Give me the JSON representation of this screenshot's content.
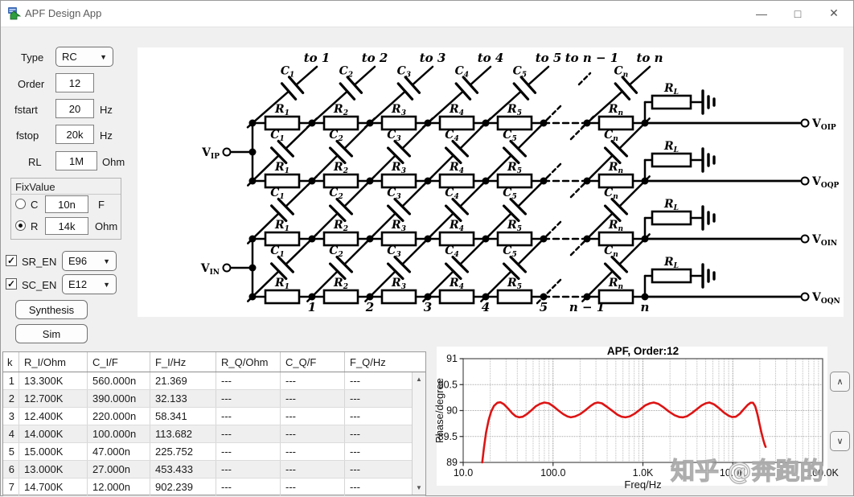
{
  "window": {
    "title": "APF Design App",
    "minimize": "—",
    "maximize": "□",
    "close": "✕"
  },
  "controls": {
    "type_label": "Type",
    "type_value": "RC",
    "order_label": "Order",
    "order_value": "12",
    "fstart_label": "fstart",
    "fstart_value": "20",
    "fstart_unit": "Hz",
    "fstop_label": "fstop",
    "fstop_value": "20k",
    "fstop_unit": "Hz",
    "rl_label": "RL",
    "rl_value": "1M",
    "rl_unit": "Ohm",
    "fixvalue": {
      "title": "FixValue",
      "c_label": "C",
      "c_value": "10n",
      "c_unit": "F",
      "r_label": "R",
      "r_value": "14k",
      "r_unit": "Ohm",
      "selected": "R"
    },
    "sr_en_label": "SR_EN",
    "sr_en_checked": "✓",
    "sr_en_value": "E96",
    "sc_en_label": "SC_EN",
    "sc_en_checked": "✓",
    "sc_en_value": "E12",
    "synthesis_label": "Synthesis",
    "sim_label": "Sim",
    "dropdown_arrow": "▼"
  },
  "schematic": {
    "top_labels": [
      "to 1",
      "to 2",
      "to 3",
      "to 4",
      "to 5",
      "to n − 1",
      "to n"
    ],
    "bottom_labels": [
      "1",
      "2",
      "3",
      "4",
      "5",
      "n − 1",
      "n"
    ],
    "element_subs": [
      "1",
      "2",
      "3",
      "4",
      "5",
      "n"
    ],
    "cap_base": "C",
    "res_base": "R",
    "load": {
      "b": "R",
      "s": "L"
    },
    "inputs": [
      {
        "b": "V",
        "s": "IP"
      },
      {
        "b": "V",
        "s": "IN"
      }
    ],
    "outputs": [
      {
        "b": "V",
        "s": "OIP"
      },
      {
        "b": "V",
        "s": "OQP"
      },
      {
        "b": "V",
        "s": "OIN"
      },
      {
        "b": "V",
        "s": "OQN"
      }
    ]
  },
  "table": {
    "headers": [
      "k",
      "R_I/Ohm",
      "C_I/F",
      "F_I/Hz",
      "R_Q/Ohm",
      "C_Q/F",
      "F_Q/Hz"
    ],
    "rows": [
      [
        "1",
        "13.300K",
        "560.000n",
        "21.369",
        "---",
        "---",
        "---"
      ],
      [
        "2",
        "12.700K",
        "390.000n",
        "32.133",
        "---",
        "---",
        "---"
      ],
      [
        "3",
        "12.400K",
        "220.000n",
        "58.341",
        "---",
        "---",
        "---"
      ],
      [
        "4",
        "14.000K",
        "100.000n",
        "113.682",
        "---",
        "---",
        "---"
      ],
      [
        "5",
        "15.000K",
        "47.000n",
        "225.752",
        "---",
        "---",
        "---"
      ],
      [
        "6",
        "13.000K",
        "27.000n",
        "453.433",
        "---",
        "---",
        "---"
      ],
      [
        "7",
        "14.700K",
        "12.000n",
        "902.239",
        "---",
        "---",
        "---"
      ]
    ],
    "scroll_up": "▲",
    "scroll_down": "▼"
  },
  "chart_buttons": {
    "up": "∧",
    "down": "∨"
  },
  "chart_data": {
    "type": "line",
    "title": "APF, Order:12",
    "xlabel": "Freq/Hz",
    "ylabel": "Phase/degree",
    "x_scale": "log",
    "xlim": [
      10,
      100000
    ],
    "ylim": [
      89,
      91
    ],
    "grid": true,
    "x_ticks": [
      {
        "v": 10,
        "label": "10.0"
      },
      {
        "v": 100,
        "label": "100.0"
      },
      {
        "v": 1000,
        "label": "1.0K"
      },
      {
        "v": 10000,
        "label": "10.0K"
      },
      {
        "v": 100000,
        "label": "100.0K"
      }
    ],
    "y_ticks": [
      {
        "v": 89,
        "label": "89"
      },
      {
        "v": 89.5,
        "label": "89.5"
      },
      {
        "v": 90,
        "label": "90"
      },
      {
        "v": 90.5,
        "label": "90.5"
      },
      {
        "v": 91,
        "label": "91"
      }
    ],
    "series": [
      {
        "name": "phase",
        "color": "#dd1414",
        "points": [
          [
            16.3,
            89.0
          ],
          [
            17,
            89.28
          ],
          [
            18,
            89.58
          ],
          [
            19.2,
            89.82
          ],
          [
            20.5,
            89.98
          ],
          [
            22,
            90.09
          ],
          [
            24,
            90.15
          ],
          [
            26,
            90.16
          ],
          [
            28.5,
            90.12
          ],
          [
            31.5,
            90.04
          ],
          [
            35,
            89.95
          ],
          [
            38.5,
            89.89
          ],
          [
            42,
            89.87
          ],
          [
            46,
            89.88
          ],
          [
            51,
            89.93
          ],
          [
            57,
            90.0
          ],
          [
            64,
            90.08
          ],
          [
            72,
            90.13
          ],
          [
            80,
            90.155
          ],
          [
            90,
            90.14
          ],
          [
            101,
            90.08
          ],
          [
            115,
            90.0
          ],
          [
            130,
            89.93
          ],
          [
            145,
            89.885
          ],
          [
            158,
            89.87
          ],
          [
            175,
            89.885
          ],
          [
            200,
            89.93
          ],
          [
            230,
            90.01
          ],
          [
            262,
            90.09
          ],
          [
            290,
            90.14
          ],
          [
            315,
            90.155
          ],
          [
            350,
            90.14
          ],
          [
            400,
            90.07
          ],
          [
            460,
            89.99
          ],
          [
            520,
            89.92
          ],
          [
            580,
            89.88
          ],
          [
            640,
            89.87
          ],
          [
            710,
            89.885
          ],
          [
            810,
            89.94
          ],
          [
            930,
            90.02
          ],
          [
            1060,
            90.1
          ],
          [
            1200,
            90.14
          ],
          [
            1320,
            90.155
          ],
          [
            1480,
            90.13
          ],
          [
            1700,
            90.06
          ],
          [
            1950,
            89.98
          ],
          [
            2250,
            89.91
          ],
          [
            2550,
            89.875
          ],
          [
            2800,
            89.87
          ],
          [
            3100,
            89.89
          ],
          [
            3500,
            89.95
          ],
          [
            4000,
            90.03
          ],
          [
            4500,
            90.1
          ],
          [
            5000,
            90.14
          ],
          [
            5500,
            90.155
          ],
          [
            6200,
            90.12
          ],
          [
            7000,
            90.05
          ],
          [
            8000,
            89.96
          ],
          [
            9000,
            89.9
          ],
          [
            9800,
            89.875
          ],
          [
            10800,
            89.88
          ],
          [
            12000,
            89.94
          ],
          [
            13300,
            90.03
          ],
          [
            14700,
            90.11
          ],
          [
            15800,
            90.15
          ],
          [
            16800,
            90.15
          ],
          [
            17800,
            90.08
          ],
          [
            18800,
            89.93
          ],
          [
            19800,
            89.75
          ],
          [
            20800,
            89.58
          ],
          [
            21800,
            89.44
          ],
          [
            22600,
            89.35
          ],
          [
            23200,
            89.3
          ]
        ]
      }
    ]
  },
  "watermark": "知乎 @奔跑的"
}
